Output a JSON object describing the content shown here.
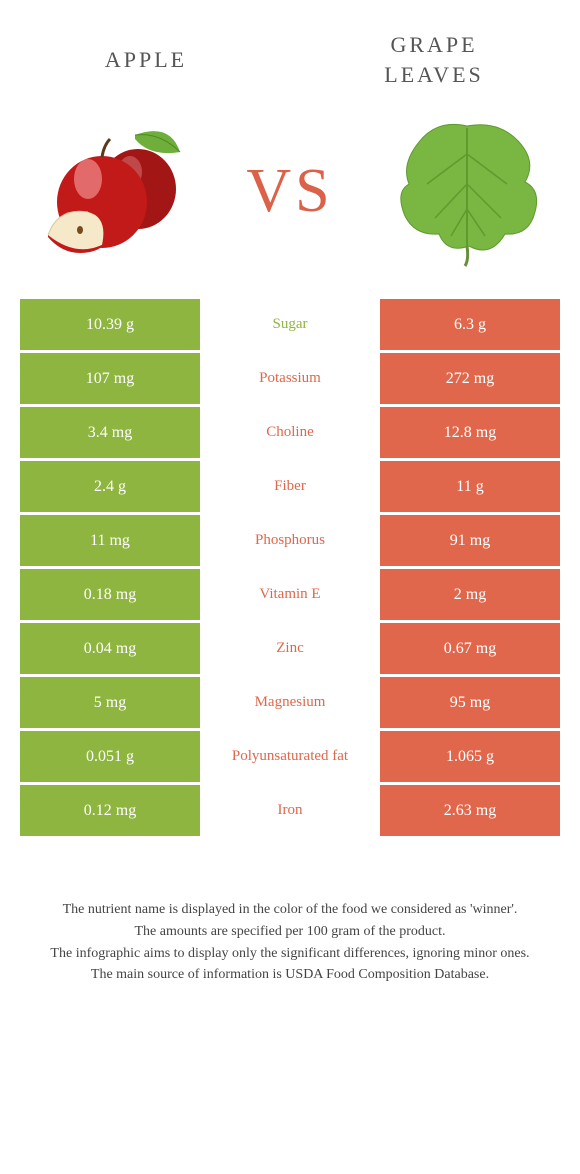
{
  "colors": {
    "green": "#8eb53f",
    "orange": "#e0674b",
    "text": "#555"
  },
  "foods": {
    "left": {
      "name": "Apple",
      "color": "green"
    },
    "right": {
      "name": "Grape leaves",
      "color": "orange"
    }
  },
  "vs_label": "VS",
  "rows": [
    {
      "nutrient": "Sugar",
      "left": "10.39 g",
      "right": "6.3 g",
      "winner": "green"
    },
    {
      "nutrient": "Potassium",
      "left": "107 mg",
      "right": "272 mg",
      "winner": "orange"
    },
    {
      "nutrient": "Choline",
      "left": "3.4 mg",
      "right": "12.8 mg",
      "winner": "orange"
    },
    {
      "nutrient": "Fiber",
      "left": "2.4 g",
      "right": "11 g",
      "winner": "orange"
    },
    {
      "nutrient": "Phosphorus",
      "left": "11 mg",
      "right": "91 mg",
      "winner": "orange"
    },
    {
      "nutrient": "Vitamin E",
      "left": "0.18 mg",
      "right": "2 mg",
      "winner": "orange"
    },
    {
      "nutrient": "Zinc",
      "left": "0.04 mg",
      "right": "0.67 mg",
      "winner": "orange"
    },
    {
      "nutrient": "Magnesium",
      "left": "5 mg",
      "right": "95 mg",
      "winner": "orange"
    },
    {
      "nutrient": "Polyunsaturated fat",
      "left": "0.051 g",
      "right": "1.065 g",
      "winner": "orange"
    },
    {
      "nutrient": "Iron",
      "left": "0.12 mg",
      "right": "2.63 mg",
      "winner": "orange"
    }
  ],
  "footnote_lines": [
    "The nutrient name is displayed in the color of the food we considered as 'winner'.",
    "The amounts are specified per 100 gram of the product.",
    "The infographic aims to display only the significant differences, ignoring minor ones.",
    "The main source of information is USDA Food Composition Database."
  ]
}
